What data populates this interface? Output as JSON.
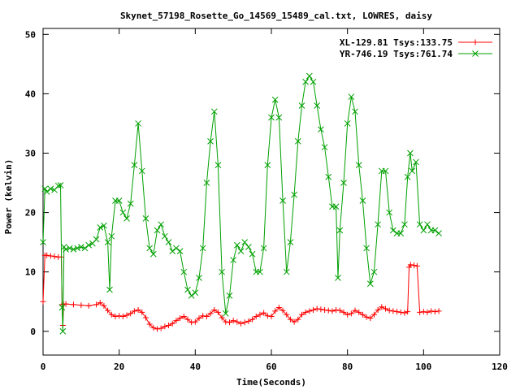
{
  "chart_data": {
    "type": "line",
    "title": "Skynet_57198_Rosette_Go_14569_15489_cal.txt, LOWRES, daisy",
    "xlabel": "Time(Seconds)",
    "ylabel": "Power (kelvin)",
    "xlim": [
      0,
      120
    ],
    "ylim": [
      -4,
      51
    ],
    "xticks": [
      0,
      20,
      40,
      60,
      80,
      100,
      120
    ],
    "yticks": [
      0,
      10,
      20,
      30,
      40,
      50
    ],
    "grid": false,
    "legend_position": "top-right",
    "series": [
      {
        "name": "XL-129.81 Tsys:133.75",
        "color": "#ff0000",
        "marker": "plus",
        "points": [
          [
            0,
            5
          ],
          [
            0.5,
            12.8
          ],
          [
            1,
            12.8
          ],
          [
            2,
            12.7
          ],
          [
            3,
            12.6
          ],
          [
            4,
            12.5
          ],
          [
            4.8,
            12.5
          ],
          [
            5,
            4.5
          ],
          [
            5.2,
            1
          ],
          [
            5.4,
            4.6
          ],
          [
            6,
            4.6
          ],
          [
            8,
            4.5
          ],
          [
            10,
            4.4
          ],
          [
            12,
            4.3
          ],
          [
            14,
            4.5
          ],
          [
            15,
            4.8
          ],
          [
            16,
            4.3
          ],
          [
            17,
            3.5
          ],
          [
            18,
            2.8
          ],
          [
            19,
            2.5
          ],
          [
            20,
            2.6
          ],
          [
            21,
            2.5
          ],
          [
            22,
            2.7
          ],
          [
            23,
            3
          ],
          [
            24,
            3.4
          ],
          [
            25,
            3.6
          ],
          [
            26,
            3.2
          ],
          [
            27,
            2.3
          ],
          [
            28,
            1.2
          ],
          [
            29,
            0.6
          ],
          [
            30,
            0.4
          ],
          [
            31,
            0.5
          ],
          [
            32,
            0.8
          ],
          [
            33,
            1
          ],
          [
            34,
            1.3
          ],
          [
            35,
            1.8
          ],
          [
            36,
            2.2
          ],
          [
            37,
            2.5
          ],
          [
            38,
            2
          ],
          [
            39,
            1.5
          ],
          [
            40,
            1.6
          ],
          [
            41,
            2.2
          ],
          [
            42,
            2.6
          ],
          [
            43,
            2.5
          ],
          [
            44,
            3
          ],
          [
            45,
            3.6
          ],
          [
            46,
            3.2
          ],
          [
            47,
            2.3
          ],
          [
            48,
            1.6
          ],
          [
            49,
            1.5
          ],
          [
            50,
            1.8
          ],
          [
            51,
            1.6
          ],
          [
            52,
            1.3
          ],
          [
            53,
            1.5
          ],
          [
            54,
            1.7
          ],
          [
            55,
            2
          ],
          [
            56,
            2.5
          ],
          [
            57,
            2.8
          ],
          [
            58,
            3.1
          ],
          [
            59,
            2.6
          ],
          [
            60,
            2.5
          ],
          [
            61,
            3.4
          ],
          [
            62,
            4
          ],
          [
            63,
            3.5
          ],
          [
            64,
            2.8
          ],
          [
            65,
            2
          ],
          [
            66,
            1.6
          ],
          [
            67,
            2
          ],
          [
            68,
            2.8
          ],
          [
            69,
            3.2
          ],
          [
            70,
            3.4
          ],
          [
            71,
            3.6
          ],
          [
            72,
            3.8
          ],
          [
            73,
            3.7
          ],
          [
            74,
            3.6
          ],
          [
            75,
            3.5
          ],
          [
            76,
            3.4
          ],
          [
            77,
            3.6
          ],
          [
            78,
            3.5
          ],
          [
            79,
            3.2
          ],
          [
            80,
            2.8
          ],
          [
            81,
            3
          ],
          [
            82,
            3.5
          ],
          [
            83,
            3.2
          ],
          [
            84,
            2.8
          ],
          [
            85,
            2.4
          ],
          [
            86,
            2.2
          ],
          [
            87,
            2.8
          ],
          [
            88,
            3.6
          ],
          [
            89,
            4.1
          ],
          [
            90,
            3.8
          ],
          [
            91,
            3.5
          ],
          [
            92,
            3.4
          ],
          [
            93,
            3.3
          ],
          [
            94,
            3.2
          ],
          [
            95,
            3.1
          ],
          [
            95.8,
            3.3
          ],
          [
            96.2,
            10.8
          ],
          [
            96.6,
            11.2
          ],
          [
            97.5,
            11.1
          ],
          [
            98.3,
            11
          ],
          [
            99,
            3.2
          ],
          [
            100,
            3.3
          ],
          [
            101,
            3.2
          ],
          [
            102,
            3.4
          ],
          [
            103,
            3.3
          ],
          [
            104,
            3.4
          ]
        ]
      },
      {
        "name": "YR-746.19 Tsys:761.74",
        "color": "#00a000",
        "marker": "cross",
        "points": [
          [
            0,
            15
          ],
          [
            0.5,
            24
          ],
          [
            1,
            23.5
          ],
          [
            2,
            24
          ],
          [
            3,
            23.8
          ],
          [
            4,
            24.5
          ],
          [
            4.6,
            24.6
          ],
          [
            5,
            4
          ],
          [
            5.2,
            0
          ],
          [
            5.5,
            14.2
          ],
          [
            6,
            13.8
          ],
          [
            7,
            14
          ],
          [
            8,
            13.8
          ],
          [
            9,
            14
          ],
          [
            10,
            14.2
          ],
          [
            11,
            14
          ],
          [
            12,
            14.5
          ],
          [
            13,
            14.8
          ],
          [
            14,
            15.5
          ],
          [
            15,
            17.5
          ],
          [
            16,
            17.8
          ],
          [
            17,
            15
          ],
          [
            17.5,
            7
          ],
          [
            18,
            16
          ],
          [
            19,
            22
          ],
          [
            20,
            22
          ],
          [
            21,
            20
          ],
          [
            22,
            19
          ],
          [
            23,
            21.5
          ],
          [
            24,
            28
          ],
          [
            25,
            35
          ],
          [
            26,
            27
          ],
          [
            27,
            19
          ],
          [
            28,
            14
          ],
          [
            29,
            13
          ],
          [
            30,
            17
          ],
          [
            31,
            18
          ],
          [
            32,
            16
          ],
          [
            33,
            15
          ],
          [
            34,
            13.5
          ],
          [
            35,
            14
          ],
          [
            36,
            13.5
          ],
          [
            37,
            10
          ],
          [
            38,
            7
          ],
          [
            39,
            6
          ],
          [
            40,
            6.5
          ],
          [
            41,
            9
          ],
          [
            42,
            14
          ],
          [
            43,
            25
          ],
          [
            44,
            32
          ],
          [
            45,
            37
          ],
          [
            46,
            28
          ],
          [
            47,
            10
          ],
          [
            48,
            3
          ],
          [
            49,
            6
          ],
          [
            50,
            12
          ],
          [
            51,
            14.5
          ],
          [
            52,
            13.5
          ],
          [
            53,
            15
          ],
          [
            54,
            14.2
          ],
          [
            55,
            13
          ],
          [
            56,
            10
          ],
          [
            57,
            10
          ],
          [
            58,
            14
          ],
          [
            59,
            28
          ],
          [
            60,
            36
          ],
          [
            61,
            39
          ],
          [
            62,
            36
          ],
          [
            63,
            22
          ],
          [
            64,
            10
          ],
          [
            65,
            15
          ],
          [
            66,
            23
          ],
          [
            67,
            32
          ],
          [
            68,
            38
          ],
          [
            69,
            42
          ],
          [
            70,
            43
          ],
          [
            71,
            42
          ],
          [
            72,
            38
          ],
          [
            73,
            34
          ],
          [
            74,
            31
          ],
          [
            75,
            26
          ],
          [
            76,
            21
          ],
          [
            77,
            21
          ],
          [
            77.5,
            9
          ],
          [
            78,
            17
          ],
          [
            79,
            25
          ],
          [
            80,
            35
          ],
          [
            81,
            39.5
          ],
          [
            82,
            37
          ],
          [
            83,
            28
          ],
          [
            84,
            22
          ],
          [
            85,
            14
          ],
          [
            86,
            8
          ],
          [
            87,
            10
          ],
          [
            88,
            18
          ],
          [
            89,
            27
          ],
          [
            90,
            27
          ],
          [
            91,
            20
          ],
          [
            92,
            17
          ],
          [
            93,
            16.5
          ],
          [
            94,
            16.5
          ],
          [
            95,
            18
          ],
          [
            95.8,
            26
          ],
          [
            96.5,
            30
          ],
          [
            97,
            27
          ],
          [
            98,
            28.5
          ],
          [
            99,
            18
          ],
          [
            100,
            17
          ],
          [
            101,
            18
          ],
          [
            102,
            17
          ],
          [
            103,
            17
          ],
          [
            104,
            16.5
          ]
        ]
      }
    ]
  }
}
